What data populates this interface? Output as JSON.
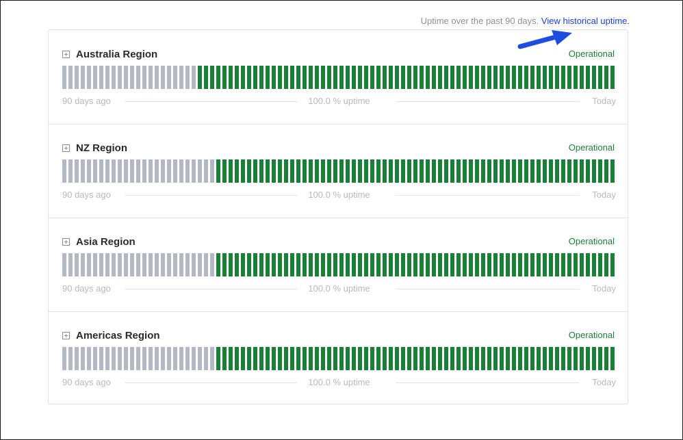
{
  "header": {
    "note": "Uptime over the past 90 days.",
    "link": "View historical uptime."
  },
  "colors": {
    "no_data": "#b4b8c3",
    "operational": "#1a7f37",
    "link": "#1d3fcf",
    "annotation_arrow": "#1d4de0"
  },
  "icons": {
    "expand": "plus-square-icon",
    "annotation": "arrow-icon"
  },
  "regions": [
    {
      "name": "Australia Region",
      "status": "Operational",
      "days_no_data": 22,
      "days_operational": 68,
      "left_label": "90 days ago",
      "uptime": "100.0 % uptime",
      "right_label": "Today"
    },
    {
      "name": "NZ Region",
      "status": "Operational",
      "days_no_data": 25,
      "days_operational": 65,
      "left_label": "90 days ago",
      "uptime": "100.0 % uptime",
      "right_label": "Today"
    },
    {
      "name": "Asia Region",
      "status": "Operational",
      "days_no_data": 25,
      "days_operational": 65,
      "left_label": "90 days ago",
      "uptime": "100.0 % uptime",
      "right_label": "Today"
    },
    {
      "name": "Americas Region",
      "status": "Operational",
      "days_no_data": 25,
      "days_operational": 65,
      "left_label": "90 days ago",
      "uptime": "100.0 % uptime",
      "right_label": "Today"
    }
  ]
}
